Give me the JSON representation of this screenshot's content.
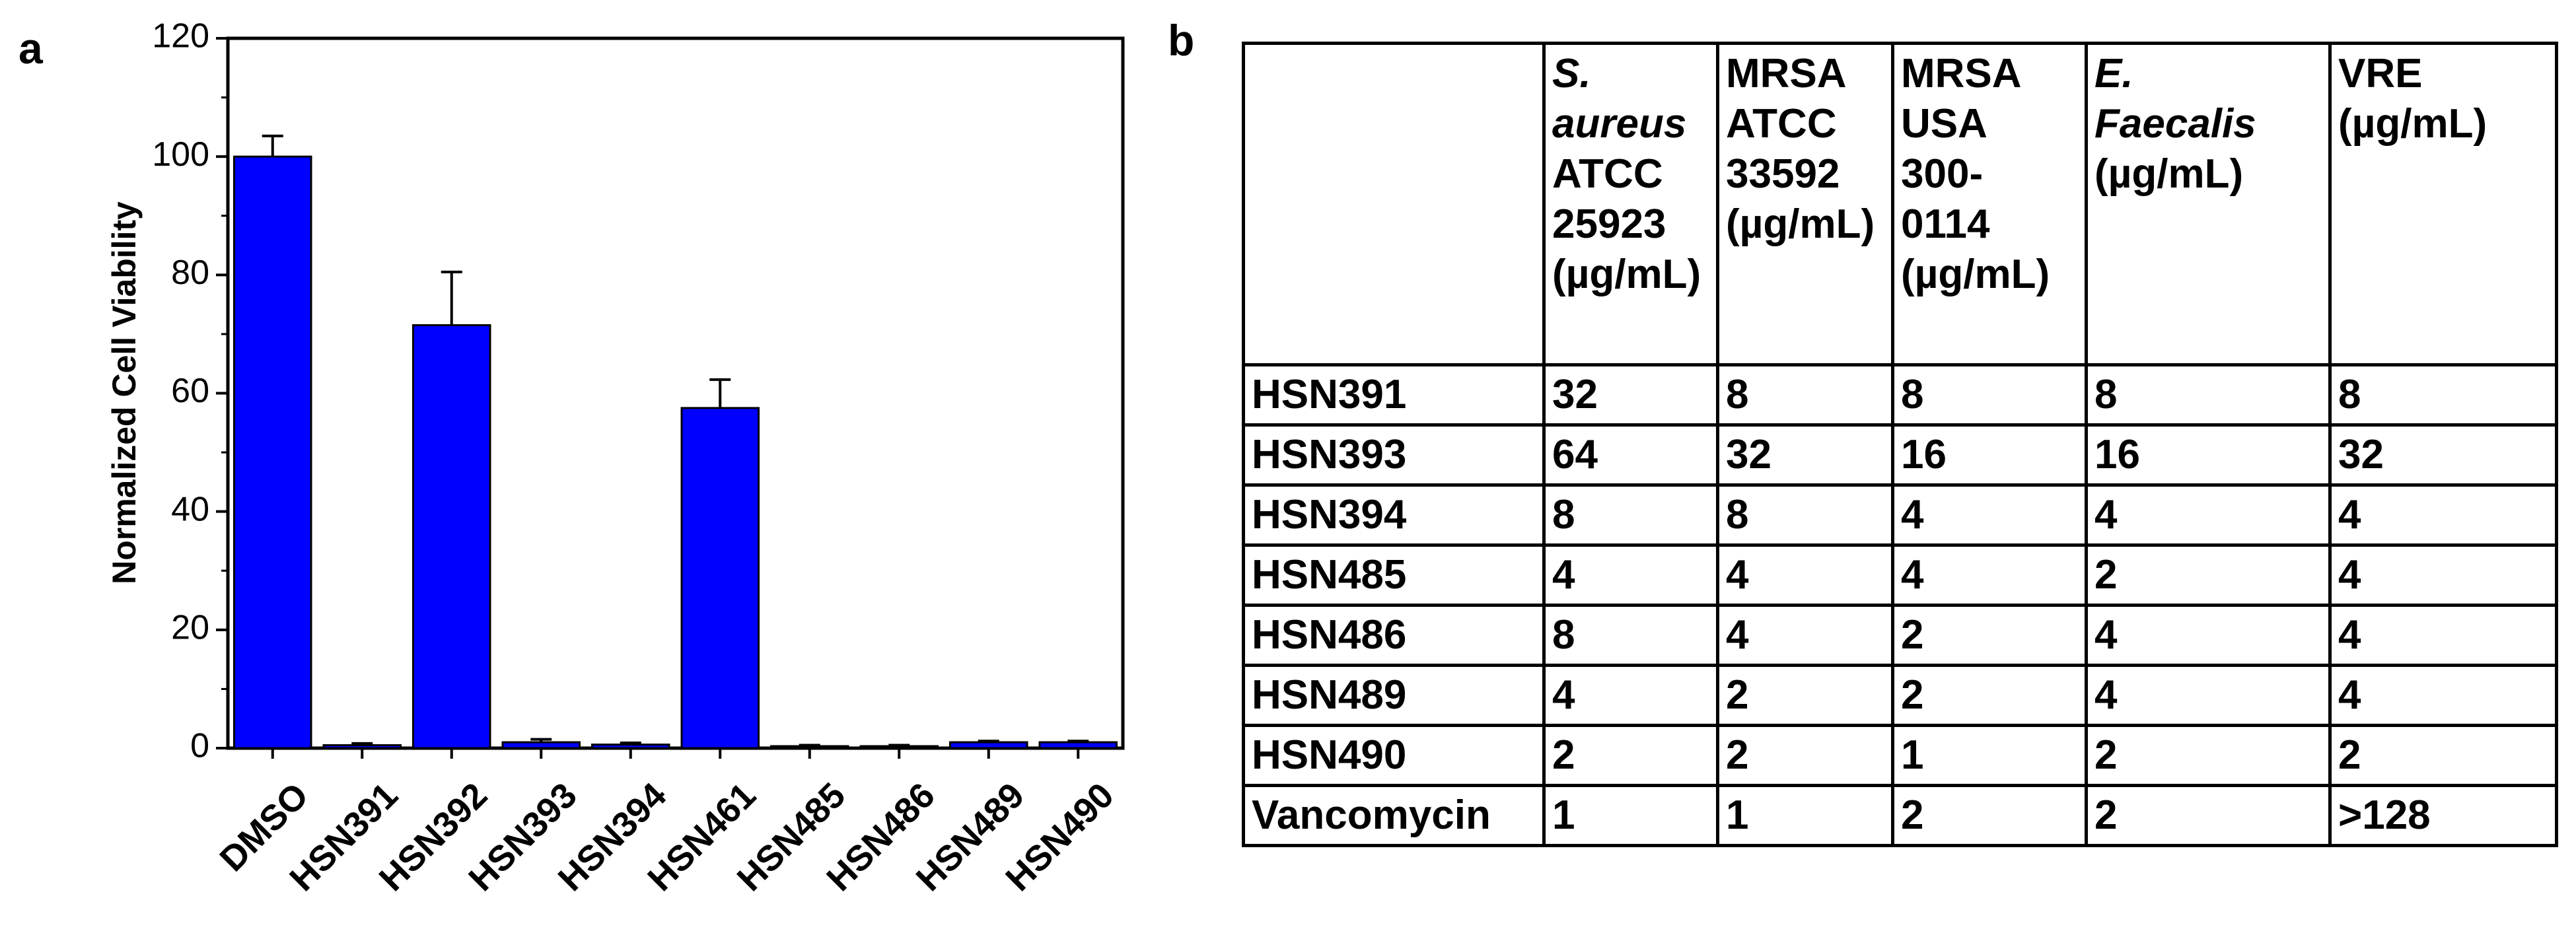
{
  "panel_a_label": "a",
  "panel_b_label": "b",
  "chart_data": {
    "type": "bar",
    "title": "",
    "xlabel": "",
    "ylabel": "Normalized Cell Viability",
    "ylim": [
      0,
      120
    ],
    "yticks": [
      0,
      20,
      40,
      60,
      80,
      100,
      120
    ],
    "categories": [
      "DMSO",
      "HSN391",
      "HSN392",
      "HSN393",
      "HSN394",
      "HSN461",
      "HSN485",
      "HSN486",
      "HSN489",
      "HSN490"
    ],
    "values": [
      100,
      0.5,
      71.5,
      1.0,
      0.6,
      57.5,
      0.3,
      0.3,
      1.0,
      1.0
    ],
    "errors": [
      3.5,
      0.3,
      9.0,
      0.5,
      0.3,
      4.8,
      0.2,
      0.2,
      0.2,
      0.2
    ],
    "bar_color": "#0000FF",
    "grid": false
  },
  "table": {
    "headers": [
      {
        "lines": []
      },
      {
        "lines": [
          {
            "text": "S.",
            "italic": true
          },
          {
            "text": "aureus",
            "italic": true
          },
          {
            "text": "ATCC",
            "italic": false
          },
          {
            "text": "25923",
            "italic": false
          },
          {
            "text": "(µg/mL)",
            "italic": false
          }
        ]
      },
      {
        "lines": [
          {
            "text": "MRSA",
            "italic": false
          },
          {
            "text": "ATCC",
            "italic": false
          },
          {
            "text": "33592",
            "italic": false
          },
          {
            "text": "(µg/mL)",
            "italic": false
          }
        ]
      },
      {
        "lines": [
          {
            "text": "MRSA",
            "italic": false
          },
          {
            "text": "USA",
            "italic": false
          },
          {
            "text": "300-",
            "italic": false
          },
          {
            "text": "0114",
            "italic": false
          },
          {
            "text": "(µg/mL)",
            "italic": false
          }
        ]
      },
      {
        "lines": [
          {
            "text": "E.",
            "italic": true
          },
          {
            "text": "Faecalis",
            "italic": true
          },
          {
            "text": "(µg/mL)",
            "italic": false
          }
        ]
      },
      {
        "lines": [
          {
            "text": "VRE",
            "italic": false
          },
          {
            "text": "(µg/mL)",
            "italic": false
          }
        ]
      }
    ],
    "rows": [
      [
        "HSN391",
        "32",
        "8",
        "8",
        "8",
        "8"
      ],
      [
        "HSN393",
        "64",
        "32",
        "16",
        "16",
        "32"
      ],
      [
        "HSN394",
        "8",
        "8",
        "4",
        "4",
        "4"
      ],
      [
        "HSN485",
        "4",
        "4",
        "4",
        "2",
        "4"
      ],
      [
        "HSN486",
        "8",
        "4",
        "2",
        "4",
        "4"
      ],
      [
        "HSN489",
        "4",
        "2",
        "2",
        "4",
        "4"
      ],
      [
        "HSN490",
        "2",
        "2",
        "1",
        "2",
        "2"
      ],
      [
        "Vancomycin",
        "1",
        "1",
        "2",
        "2",
        ">128"
      ]
    ]
  }
}
